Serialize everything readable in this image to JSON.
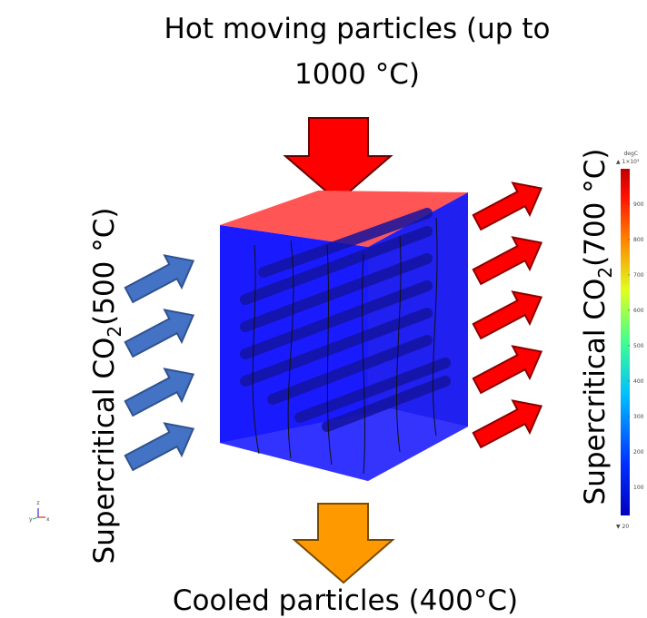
{
  "title_lines": [
    "Hot moving particles (up to",
    "1000 °C)"
  ],
  "left_label": {
    "prefix": "Supercritical CO",
    "subscript": "2",
    "suffix": "(500 °C)"
  },
  "right_label": {
    "prefix": "Supercritical CO",
    "subscript": "2",
    "suffix": "(700 °C)"
  },
  "bottom_label": "Cooled particles (400°C)",
  "colorbar": {
    "unit": "degC",
    "max": {
      "value": 1000,
      "label": "▲ 1×10³"
    },
    "min": {
      "value": 20,
      "label": "▼ 20"
    },
    "ticks": [
      900,
      800,
      700,
      600,
      500,
      400,
      300,
      200,
      100
    ]
  },
  "axes_triad": {
    "z": "z",
    "y": "y",
    "x": "x"
  }
}
